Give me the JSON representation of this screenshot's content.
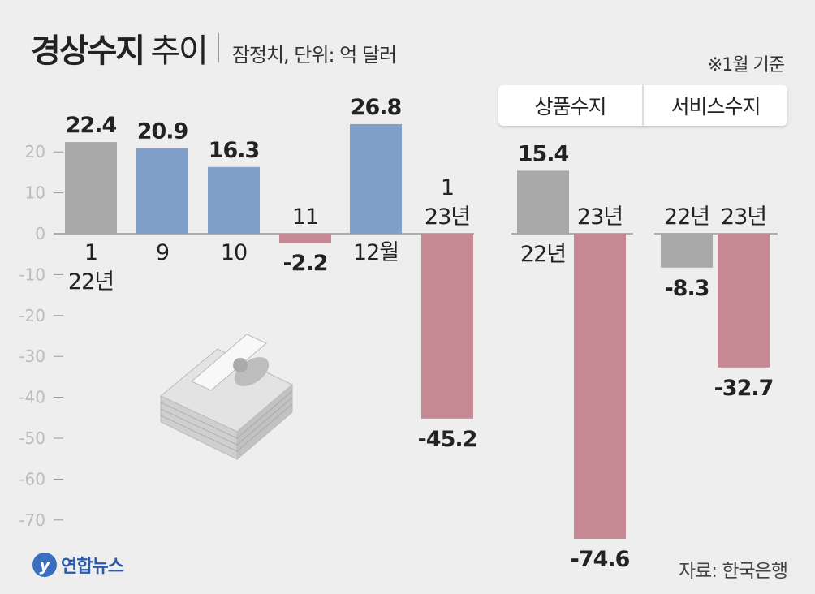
{
  "title": "경상수지",
  "title_suffix": "추이",
  "subtitle": "잠정치, 단위: 억 달러",
  "note": "※1월 기준",
  "legend": [
    "상품수지",
    "서비스수지"
  ],
  "source": "자료: 한국은행",
  "logo": "연합뉴스",
  "colors": {
    "gray": "#a8a8a8",
    "blue": "#7f9ec8",
    "pink": "#c68893",
    "axis": "#999999",
    "tick_label": "#bbbbbb"
  },
  "chart_data": [
    {
      "type": "bar",
      "title": "경상수지",
      "unit": "억 달러",
      "categories": [
        "22년 1월",
        "9월",
        "10월",
        "11월",
        "12월",
        "23년 1월"
      ],
      "category_labels": [
        [
          "1",
          "22년"
        ],
        [
          "9"
        ],
        [
          "10"
        ],
        [
          "11"
        ],
        [
          "12월"
        ],
        [
          "1",
          "23년"
        ]
      ],
      "values": [
        22.4,
        20.9,
        16.3,
        -2.2,
        26.8,
        -45.2
      ],
      "value_labels": [
        "22.4",
        "20.9",
        "16.3",
        "-2.2",
        "26.8",
        "-45.2"
      ],
      "bar_colors": [
        "gray",
        "blue",
        "blue",
        "pink",
        "blue",
        "pink"
      ],
      "yticks": [
        20,
        10,
        0,
        -10,
        -20,
        -30,
        -40,
        -50,
        -60,
        -70
      ],
      "ylim": [
        -75,
        30
      ],
      "grid": false
    },
    {
      "type": "bar",
      "title": "상품수지",
      "categories": [
        "22년",
        "23년"
      ],
      "values": [
        15.4,
        -74.6
      ],
      "value_labels": [
        "15.4",
        "-74.6"
      ],
      "bar_colors": [
        "gray",
        "pink"
      ]
    },
    {
      "type": "bar",
      "title": "서비스수지",
      "categories": [
        "22년",
        "23년"
      ],
      "values": [
        -8.3,
        -32.7
      ],
      "value_labels": [
        "-8.3",
        "-32.7"
      ],
      "bar_colors": [
        "gray",
        "pink"
      ]
    }
  ]
}
